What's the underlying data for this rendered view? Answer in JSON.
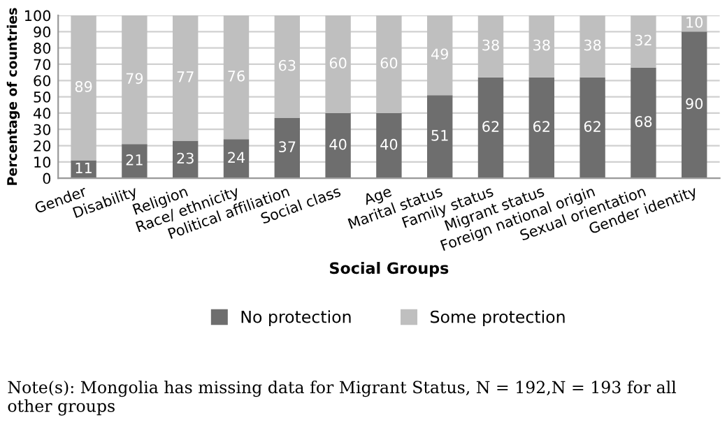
{
  "chart_data": {
    "type": "bar",
    "stacked": true,
    "xlabel": "Social Groups",
    "ylabel": "Percentage of countries",
    "categories": [
      "Gender",
      "Disability",
      "Religion",
      "Race/ ethnicity",
      "Political affiliation",
      "Social class",
      "Age",
      "Marital status",
      "Family status",
      "Migrant status",
      "Foreign national origin",
      "Sexual orientation",
      "Gender identity"
    ],
    "series": [
      {
        "name": "No protection",
        "color": "#6e6e6e",
        "values": [
          11,
          21,
          23,
          24,
          37,
          40,
          40,
          51,
          62,
          62,
          62,
          68,
          90
        ]
      },
      {
        "name": "Some protection",
        "color": "#bfbfbf",
        "values": [
          89,
          79,
          77,
          76,
          63,
          60,
          60,
          49,
          38,
          38,
          38,
          32,
          10
        ]
      }
    ],
    "ylim": [
      0,
      100
    ],
    "yticks": [
      0,
      10,
      20,
      30,
      40,
      50,
      60,
      70,
      80,
      90,
      100
    ],
    "grid": "y",
    "legend": "bottom",
    "data_labels": true,
    "annotations": [
      "Note(s): Mongolia has missing data for Migrant Status, N = 192,N = 193 for all other groups"
    ]
  }
}
